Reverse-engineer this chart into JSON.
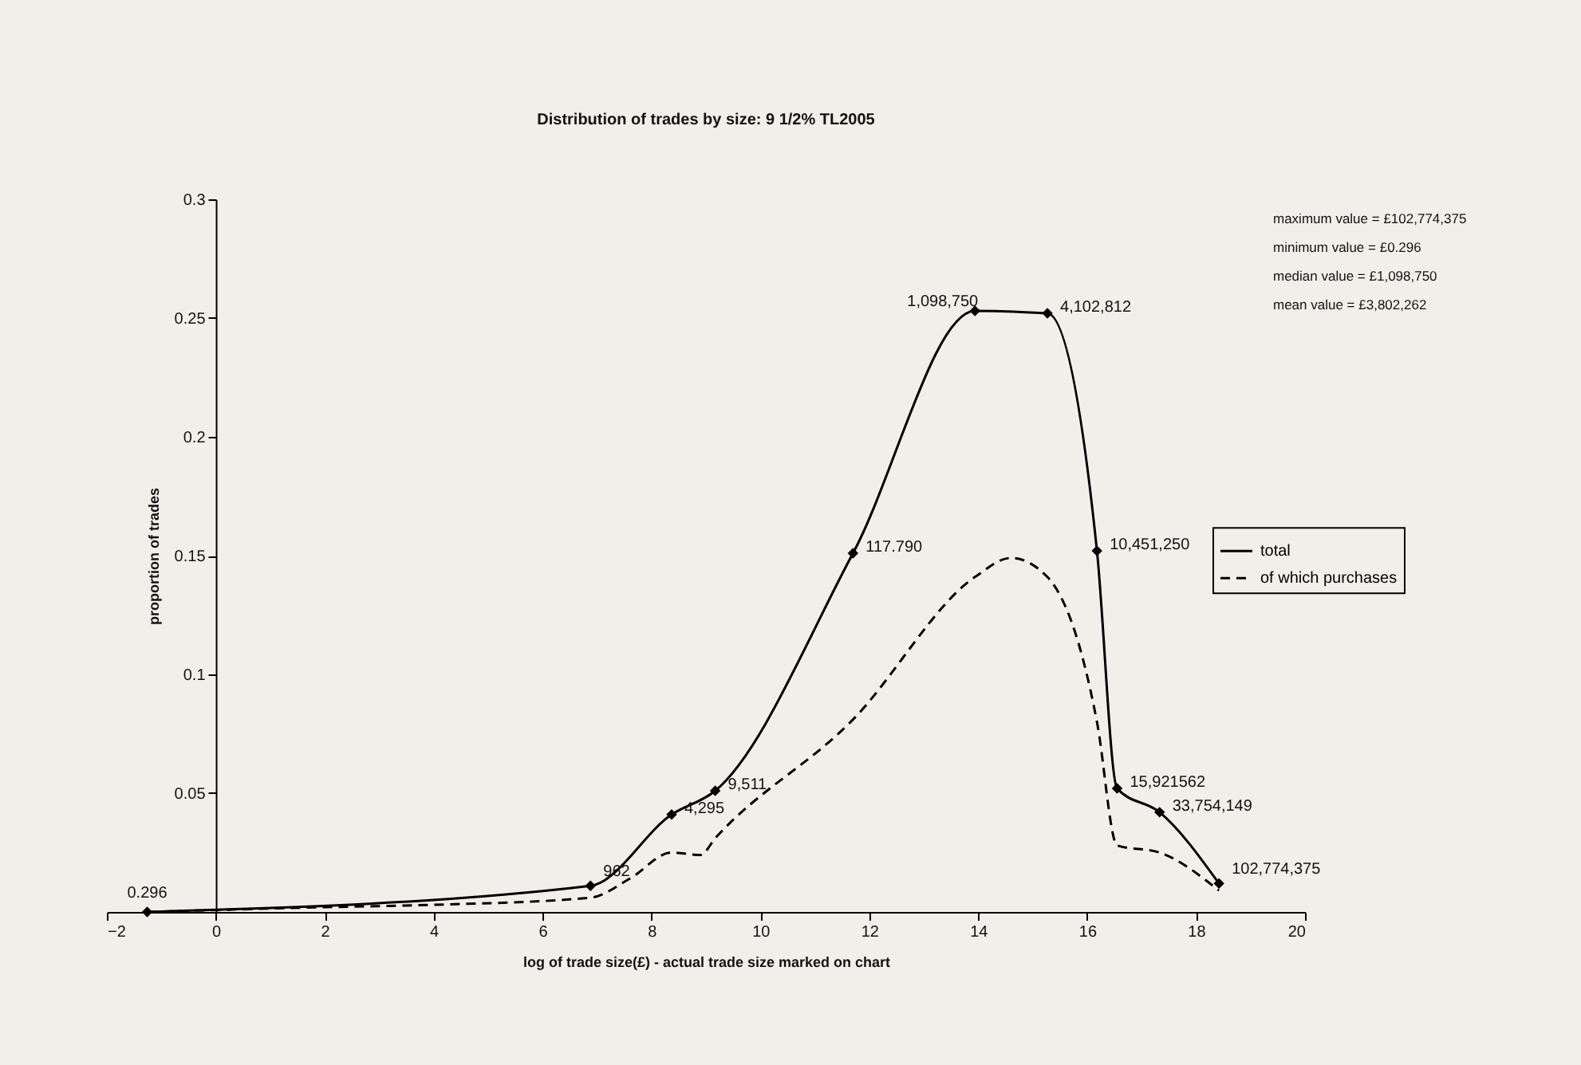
{
  "chart_data": {
    "type": "line",
    "title": "Distribution of trades by size: 9 1/2% TL2005",
    "xlabel": "log of trade size(£) - actual trade size marked on chart",
    "ylabel": "proportion of trades",
    "xlim": [
      -2,
      20
    ],
    "xticks": [
      -2,
      0,
      2,
      4,
      6,
      8,
      10,
      12,
      14,
      16,
      18,
      20
    ],
    "ylim": [
      0,
      0.3
    ],
    "yticks": [
      0.05,
      0.1,
      0.15,
      0.2,
      0.25,
      0.3
    ],
    "legend": "right",
    "grid": false,
    "annotations": [
      "maximum value = £102,774,375",
      "minimum value = £0.296",
      "median value = £1,098,750",
      "mean value = £3,802,262",
      {
        "text": "0.296",
        "x": -1.26,
        "y": 0
      },
      {
        "text": "962",
        "x": 6.88,
        "y": 0.011
      },
      {
        "text": "4,295",
        "x": 8.37,
        "y": 0.041
      },
      {
        "text": "9,511",
        "x": 9.17,
        "y": 0.051
      },
      {
        "text": "117.790",
        "x": 11.7,
        "y": 0.151
      },
      {
        "text": "1,098,750",
        "x": 13.94,
        "y": 0.253
      },
      {
        "text": "4,102,812",
        "x": 15.27,
        "y": 0.252
      },
      {
        "text": "10,451,250",
        "x": 16.18,
        "y": 0.152
      },
      {
        "text": "15,921562",
        "x": 16.55,
        "y": 0.052
      },
      {
        "text": "33,754,149",
        "x": 17.33,
        "y": 0.042
      },
      {
        "text": "102,774,375",
        "x": 18.42,
        "y": 0.012
      }
    ],
    "series": [
      {
        "name": "total",
        "color": "#000000",
        "marker": "diamond",
        "line_style": "solid",
        "x": [
          -1.26,
          6.88,
          8.37,
          9.17,
          11.7,
          13.94,
          15.27,
          16.18,
          16.55,
          17.33,
          18.42
        ],
        "values": [
          0,
          0.011,
          0.041,
          0.051,
          0.151,
          0.253,
          0.252,
          0.152,
          0.052,
          0.042,
          0.012
        ]
      },
      {
        "name": "of which purchases",
        "color": "#000000",
        "marker": "none",
        "line_style": "dashed",
        "x": [
          -1.26,
          2,
          4,
          6.88,
          7.6,
          8.37,
          8.9,
          9.17,
          11.7,
          13.94,
          14.6,
          15.27,
          16.18,
          16.55,
          17.33,
          18.42
        ],
        "values": [
          0,
          0.002,
          0.003,
          0.006,
          0.014,
          0.025,
          0.024,
          0.031,
          0.081,
          0.141,
          0.149,
          0.141,
          0.08,
          0.028,
          0.025,
          0.009
        ]
      }
    ]
  }
}
